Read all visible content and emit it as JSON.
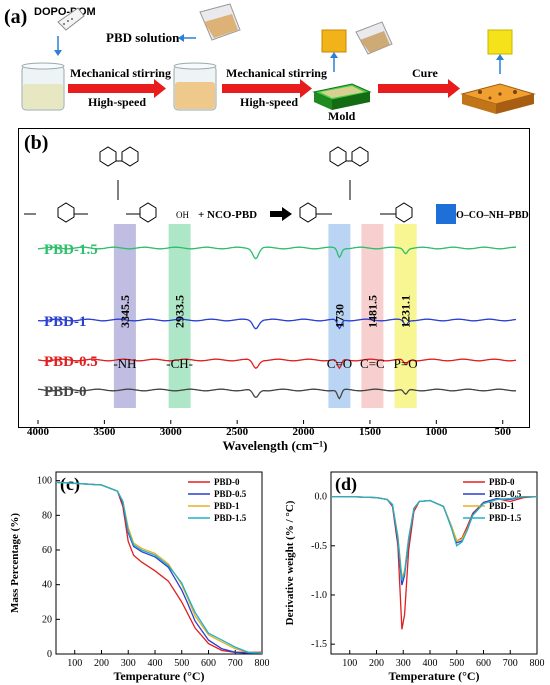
{
  "panel_a": {
    "label": "(a)",
    "dopo_label": "DOPO-DOM",
    "pbd_solution": "PBD solution",
    "step1_top": "Mechanical stirring",
    "step1_bottom": "High-speed",
    "step2_top": "Mechanical stirring",
    "step2_bottom": "High-speed",
    "mold": "Mold",
    "cure": "Cure"
  },
  "panel_b": {
    "label": "(b)",
    "reaction_plus": "+ NCO-PBD",
    "reaction_oh": "OH",
    "product_tail": "O–CO–NH–PBD",
    "xlabel": "Wavelength (cm⁻¹)",
    "series": [
      {
        "name": "PBD-1.5",
        "color": "#2dbf6b"
      },
      {
        "name": "PBD-1",
        "color": "#2b3fd1"
      },
      {
        "name": "PBD-0.5",
        "color": "#e02020"
      },
      {
        "name": "PBD-0",
        "color": "#444444"
      }
    ],
    "bands": [
      {
        "center": 3345.5,
        "label": "3345.5",
        "group": "-NH",
        "color": "#8a86c8"
      },
      {
        "center": 2933.5,
        "label": "2933.5",
        "group": "-CH-",
        "color": "#6cd39a"
      },
      {
        "center": 1730,
        "label": "1730",
        "group": "C=O",
        "color": "#7fb2ea"
      },
      {
        "center": 1481.5,
        "label": "1481.5",
        "group": "C=C",
        "color": "#f0a7a7"
      },
      {
        "center": 1231.1,
        "label": "1231.1",
        "group": "P=O",
        "color": "#f2ec3a"
      }
    ],
    "xticks": [
      "4000",
      "3500",
      "3000",
      "2500",
      "2000",
      "1500",
      "1000",
      "500"
    ]
  },
  "chart_data": [
    {
      "type": "line",
      "title": "",
      "panel": "(c)",
      "xlabel": "Temperature (°C)",
      "ylabel": "Mass Percentage (%)",
      "xlim": [
        30,
        800
      ],
      "ylim": [
        0,
        105
      ],
      "xticks": [
        100,
        200,
        300,
        400,
        500,
        600,
        700,
        800
      ],
      "yticks": [
        0,
        20,
        40,
        60,
        80,
        100
      ],
      "legend": "top-right",
      "x": [
        30,
        100,
        200,
        260,
        280,
        300,
        320,
        350,
        400,
        450,
        500,
        520,
        550,
        600,
        650,
        700,
        750,
        800
      ],
      "series": [
        {
          "name": "PBD-0",
          "color": "#e02020",
          "values": [
            99,
            98.5,
            97.5,
            94,
            85,
            65,
            57,
            53,
            48,
            42,
            30,
            24,
            15,
            6,
            2,
            1,
            1,
            1
          ]
        },
        {
          "name": "PBD-0.5",
          "color": "#2b3fd1",
          "values": [
            99,
            98.5,
            97.5,
            94,
            87,
            70,
            62,
            59,
            56,
            50,
            37,
            30,
            19,
            8,
            3,
            1,
            0.5,
            0.5
          ]
        },
        {
          "name": "PBD-1",
          "color": "#e8b020",
          "values": [
            99,
            98.5,
            97.5,
            94,
            88,
            73,
            64,
            61,
            58,
            52,
            40,
            33,
            22,
            11,
            7,
            3,
            1,
            0.5
          ]
        },
        {
          "name": "PBD-1.5",
          "color": "#20b0c8",
          "values": [
            99,
            98.5,
            97.5,
            94,
            88,
            71,
            63,
            60,
            57,
            51,
            41,
            34,
            24,
            12,
            8,
            4,
            1,
            0.5
          ]
        }
      ]
    },
    {
      "type": "line",
      "title": "",
      "panel": "(d)",
      "xlabel": "Temperature (°C)",
      "ylabel": "Derivative weight (% / °C)",
      "xlim": [
        30,
        800
      ],
      "ylim": [
        -1.6,
        0.25
      ],
      "xticks": [
        100,
        200,
        300,
        400,
        500,
        600,
        700,
        800
      ],
      "yticks": [
        0.0,
        -0.5,
        -1.0,
        -1.5
      ],
      "legend": "top-right",
      "x": [
        30,
        100,
        200,
        240,
        260,
        280,
        295,
        305,
        320,
        340,
        360,
        400,
        450,
        480,
        500,
        520,
        540,
        560,
        600,
        650,
        700,
        750,
        800
      ],
      "series": [
        {
          "name": "PBD-0",
          "color": "#e02020",
          "values": [
            0,
            0,
            -0.01,
            -0.03,
            -0.1,
            -0.5,
            -1.35,
            -1.2,
            -0.55,
            -0.15,
            -0.05,
            -0.04,
            -0.1,
            -0.3,
            -0.45,
            -0.42,
            -0.3,
            -0.17,
            -0.06,
            -0.02,
            -0.05,
            -0.01,
            0
          ]
        },
        {
          "name": "PBD-0.5",
          "color": "#2b3fd1",
          "values": [
            0,
            0,
            -0.01,
            -0.03,
            -0.09,
            -0.45,
            -0.9,
            -0.8,
            -0.45,
            -0.12,
            -0.05,
            -0.04,
            -0.1,
            -0.3,
            -0.47,
            -0.45,
            -0.33,
            -0.18,
            -0.06,
            -0.02,
            -0.03,
            0,
            0
          ]
        },
        {
          "name": "PBD-1",
          "color": "#e8b020",
          "values": [
            0,
            0,
            -0.01,
            -0.03,
            -0.08,
            -0.4,
            -0.82,
            -0.75,
            -0.42,
            -0.12,
            -0.05,
            -0.04,
            -0.1,
            -0.3,
            -0.45,
            -0.43,
            -0.33,
            -0.19,
            -0.07,
            -0.03,
            -0.02,
            0,
            0
          ]
        },
        {
          "name": "PBD-1.5",
          "color": "#20b0c8",
          "values": [
            0,
            0,
            -0.01,
            -0.03,
            -0.08,
            -0.42,
            -0.85,
            -0.78,
            -0.43,
            -0.12,
            -0.05,
            -0.04,
            -0.1,
            -0.32,
            -0.5,
            -0.46,
            -0.34,
            -0.19,
            -0.07,
            -0.03,
            -0.02,
            0,
            0
          ]
        }
      ]
    }
  ]
}
